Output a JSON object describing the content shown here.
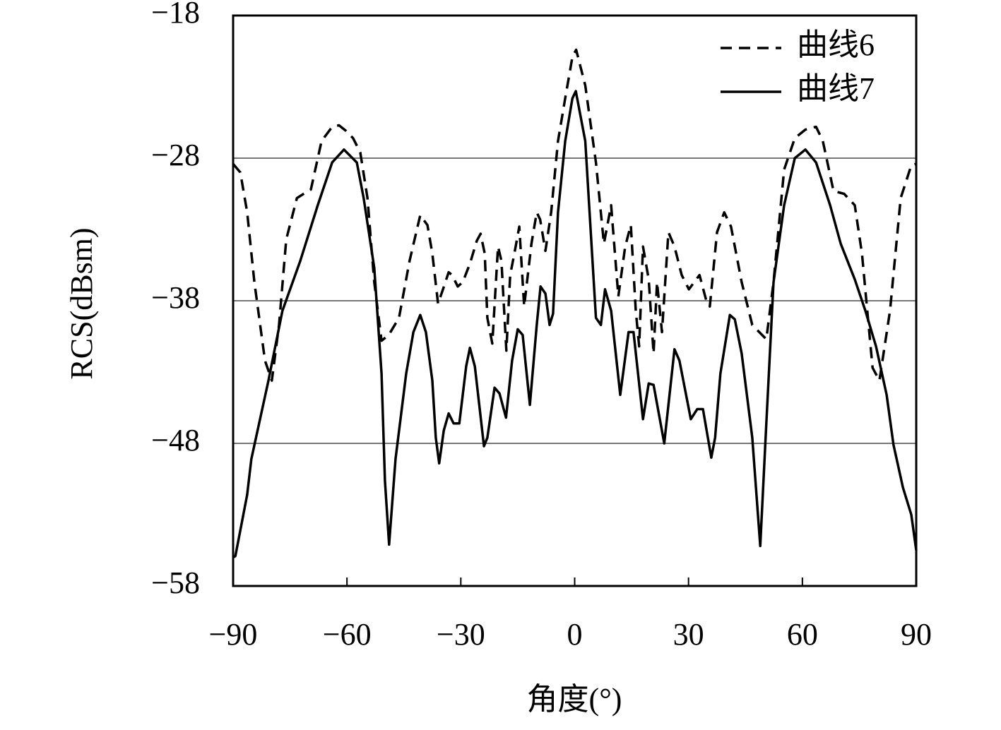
{
  "chart_data": {
    "type": "line",
    "xlabel": "角度(°)",
    "ylabel": "RCS(dBsm)",
    "xlim": [
      -90,
      90
    ],
    "xticks": [
      {
        "value": -90,
        "label": "−90"
      },
      {
        "value": -60,
        "label": "−60"
      },
      {
        "value": -30,
        "label": "−30"
      },
      0,
      30,
      60,
      90
    ],
    "ylim": [
      -58,
      -18
    ],
    "yticks": [
      {
        "value": -58,
        "label": "−58"
      },
      {
        "value": -48,
        "label": "−48"
      },
      {
        "value": -38,
        "label": "−38"
      },
      {
        "value": -28,
        "label": "−28"
      },
      {
        "value": -18,
        "label": "−18"
      }
    ],
    "grid": true,
    "legend": "upper right",
    "series": [
      {
        "name": "曲线6",
        "color": "#000000",
        "dashed": true,
        "x": [
          -90,
          -88.1,
          -86.3,
          -84.4,
          -81.6,
          -79.8,
          -77.9,
          -76.0,
          -73.2,
          -71.4,
          -69.5,
          -66.7,
          -63.9,
          -62.1,
          -60.2,
          -58.4,
          -56.5,
          -54.6,
          -52.8,
          -50.9,
          -49.0,
          -46.3,
          -43.5,
          -40.7,
          -38.8,
          -37.5,
          -36.0,
          -34.7,
          -33.2,
          -32.3,
          -30.8,
          -29.5,
          -27.6,
          -25.8,
          -24.8,
          -23.7,
          -23.0,
          -21.7,
          -20.2,
          -19.3,
          -18.0,
          -17.0,
          -15.9,
          -14.6,
          -13.3,
          -11.4,
          -10.0,
          -9.1,
          -7.7,
          -6.2,
          -4.4,
          -2.5,
          -0.6,
          0.4,
          2.8,
          5.6,
          7.7,
          9.6,
          11.5,
          13.3,
          14.8,
          16.1,
          17.0,
          18.0,
          19.5,
          20.8,
          21.7,
          23.0,
          24.7,
          26.3,
          28.2,
          30.1,
          32.9,
          34.7,
          35.6,
          37.5,
          39.4,
          41.2,
          44.0,
          46.8,
          50.5,
          52.4,
          55.2,
          58.0,
          60.8,
          63.6,
          65.4,
          68.2,
          71.0,
          73.8,
          75.7,
          78.5,
          80.3,
          83.1,
          85.9,
          88.7,
          90.0
        ],
        "values": [
          -28.4,
          -29.0,
          -31.8,
          -36.7,
          -42.2,
          -43.6,
          -39.7,
          -33.7,
          -30.8,
          -30.5,
          -30.2,
          -26.8,
          -25.8,
          -25.7,
          -26.1,
          -26.6,
          -27.6,
          -30.8,
          -36.7,
          -40.8,
          -40.4,
          -39.2,
          -35.2,
          -32.0,
          -32.7,
          -34.7,
          -38.2,
          -37.2,
          -36.0,
          -36.2,
          -37.0,
          -36.7,
          -35.4,
          -33.8,
          -33.3,
          -34.7,
          -39.2,
          -41.0,
          -34.2,
          -35.2,
          -41.5,
          -36.2,
          -34.7,
          -32.8,
          -38.4,
          -34.0,
          -31.8,
          -32.3,
          -34.5,
          -31.8,
          -26.8,
          -23.8,
          -20.9,
          -20.4,
          -22.9,
          -28.3,
          -34.0,
          -31.3,
          -37.7,
          -34.2,
          -32.7,
          -38.7,
          -41.2,
          -34.2,
          -36.5,
          -41.7,
          -36.7,
          -40.2,
          -33.2,
          -34.2,
          -36.2,
          -37.2,
          -36.2,
          -38.0,
          -38.4,
          -33.2,
          -31.8,
          -32.8,
          -36.7,
          -39.7,
          -40.7,
          -36.7,
          -28.8,
          -26.6,
          -26.0,
          -25.8,
          -26.8,
          -30.3,
          -30.5,
          -31.3,
          -34.7,
          -42.7,
          -43.6,
          -38.7,
          -30.8,
          -28.5,
          -28.4
        ]
      },
      {
        "name": "曲线7",
        "color": "#000000",
        "dashed": false,
        "x": [
          -90,
          -89.4,
          -86.3,
          -85.2,
          -80.7,
          -77.0,
          -72.3,
          -67.7,
          -63.9,
          -60.8,
          -57.4,
          -55.6,
          -52.8,
          -50.9,
          -50.0,
          -48.9,
          -47.2,
          -44.4,
          -42.5,
          -40.7,
          -39.2,
          -37.5,
          -36.6,
          -35.7,
          -34.5,
          -33.2,
          -31.9,
          -30.4,
          -28.6,
          -27.6,
          -26.3,
          -23.9,
          -23.0,
          -21.1,
          -19.8,
          -18.1,
          -16.5,
          -15.0,
          -13.7,
          -11.8,
          -10.0,
          -9.0,
          -7.7,
          -6.6,
          -5.7,
          -4.4,
          -2.5,
          -0.6,
          0.3,
          2.8,
          5.6,
          6.9,
          8.0,
          9.6,
          12.0,
          14.2,
          15.5,
          18.0,
          19.5,
          20.8,
          23.6,
          26.3,
          27.6,
          30.6,
          32.3,
          33.8,
          36.0,
          37.0,
          38.4,
          40.9,
          42.2,
          44.0,
          46.8,
          48.9,
          50.5,
          52.4,
          55.2,
          58.0,
          60.8,
          63.6,
          67.3,
          70.1,
          73.8,
          76.6,
          79.4,
          82.2,
          84.0,
          86.5,
          88.7,
          90.0
        ],
        "values": [
          -56.0,
          -55.9,
          -51.6,
          -49.1,
          -43.6,
          -38.7,
          -35.2,
          -31.3,
          -28.3,
          -27.4,
          -28.3,
          -30.8,
          -35.7,
          -43.1,
          -50.6,
          -55.1,
          -49.1,
          -43.1,
          -40.2,
          -39.0,
          -40.2,
          -43.6,
          -47.6,
          -49.4,
          -47.1,
          -45.9,
          -46.6,
          -46.6,
          -42.6,
          -41.3,
          -42.6,
          -48.2,
          -47.6,
          -44.1,
          -44.5,
          -46.2,
          -42.2,
          -40.0,
          -40.4,
          -45.3,
          -39.7,
          -37.0,
          -37.5,
          -39.7,
          -38.9,
          -31.8,
          -26.8,
          -23.8,
          -23.3,
          -26.8,
          -39.2,
          -39.7,
          -37.2,
          -38.7,
          -44.6,
          -40.2,
          -40.2,
          -46.3,
          -43.8,
          -43.9,
          -48.0,
          -41.4,
          -42.2,
          -46.3,
          -45.6,
          -45.6,
          -49.0,
          -47.6,
          -43.1,
          -39.0,
          -39.3,
          -41.7,
          -47.6,
          -55.2,
          -46.6,
          -36.7,
          -31.3,
          -28.0,
          -27.4,
          -28.3,
          -31.3,
          -34.0,
          -36.5,
          -38.7,
          -41.2,
          -44.6,
          -48.1,
          -51.1,
          -53.0,
          -55.5
        ]
      }
    ]
  }
}
